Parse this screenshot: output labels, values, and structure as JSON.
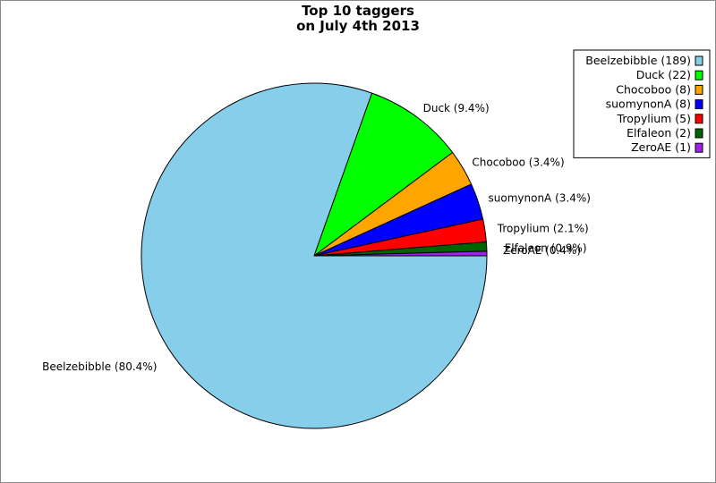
{
  "chart_data": {
    "type": "pie",
    "title_lines": [
      "Top 10 taggers",
      "on July 4th 2013"
    ],
    "slices": [
      {
        "name": "Beelzebibble",
        "value": 189,
        "percent_label": "Beelzebibble (80.4%)",
        "legend_label": "Beelzebibble (189)",
        "color": "#87ceeb"
      },
      {
        "name": "Duck",
        "value": 22,
        "percent_label": "Duck (9.4%)",
        "legend_label": "Duck (22)",
        "color": "#00ff00"
      },
      {
        "name": "Chocoboo",
        "value": 8,
        "percent_label": "Chocoboo (3.4%)",
        "legend_label": "Chocoboo (8)",
        "color": "#ffa500"
      },
      {
        "name": "suomynonA",
        "value": 8,
        "percent_label": "suomynonA (3.4%)",
        "legend_label": "suomynonA (8)",
        "color": "#0000ff"
      },
      {
        "name": "Tropylium",
        "value": 5,
        "percent_label": "Tropylium (2.1%)",
        "legend_label": "Tropylium (5)",
        "color": "#ff0000"
      },
      {
        "name": "Elfaleon",
        "value": 2,
        "percent_label": "Elfaleon (0.9%)",
        "legend_label": "Elfaleon (2)",
        "color": "#006400"
      },
      {
        "name": "ZeroAE",
        "value": 1,
        "percent_label": "ZeroAE (0.4%)",
        "legend_label": "ZeroAE (1)",
        "color": "#a020f0"
      }
    ],
    "start_direction": "east",
    "rotation": "clockwise",
    "legend_position": "top-right"
  }
}
